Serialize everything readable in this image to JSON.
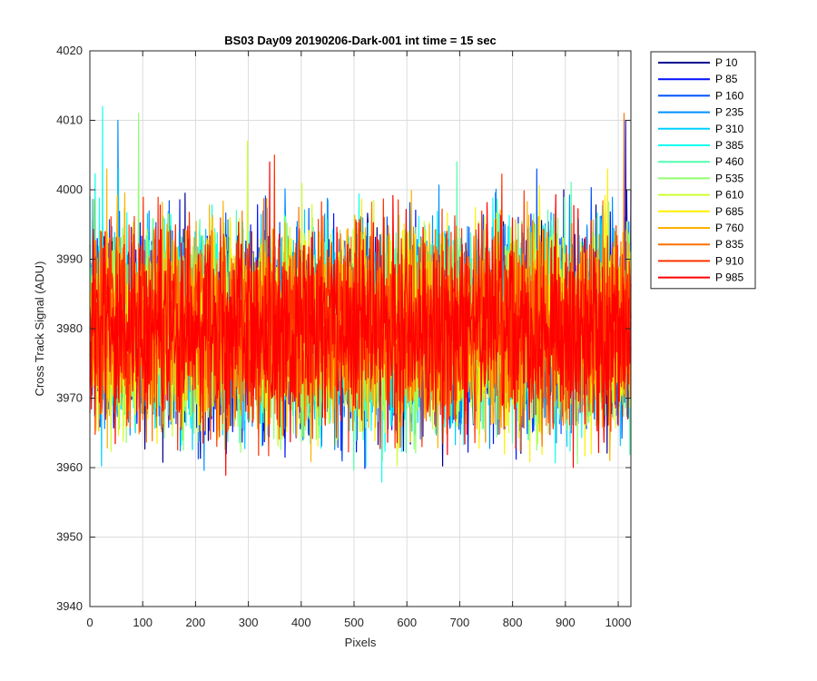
{
  "chart_data": {
    "type": "line",
    "title": "BS03 Day09 20190206-Dark-001 int time = 15 sec",
    "xlabel": "Pixels",
    "ylabel": "Cross Track Signal (ADU)",
    "xlim": [
      0,
      1024
    ],
    "ylim": [
      3940,
      4020
    ],
    "xticks": [
      0,
      100,
      200,
      300,
      400,
      500,
      600,
      700,
      800,
      900,
      1000
    ],
    "yticks": [
      3940,
      3950,
      3960,
      3970,
      3980,
      3990,
      4000,
      4010,
      4020
    ],
    "grid": true,
    "legend_position": "outside-top-right",
    "x_count": 1024,
    "noise_amplitude": 12,
    "series": [
      {
        "name": "P 10",
        "color": "#00008F",
        "mean": 3980,
        "max": 4000
      },
      {
        "name": "P 85",
        "color": "#0010FF",
        "mean": 3980,
        "max": 4010
      },
      {
        "name": "P 160",
        "color": "#0050FF",
        "mean": 3980,
        "max": 4003
      },
      {
        "name": "P 235",
        "color": "#0090FF",
        "mean": 3980,
        "max": 4010
      },
      {
        "name": "P 310",
        "color": "#00CFFF",
        "mean": 3980,
        "max": 4003
      },
      {
        "name": "P 385",
        "color": "#10FFEF",
        "mean": 3980,
        "max": 4012
      },
      {
        "name": "P 460",
        "color": "#50FFAF",
        "mean": 3980,
        "max": 4004
      },
      {
        "name": "P 535",
        "color": "#8FFF70",
        "mean": 3980,
        "max": 4011
      },
      {
        "name": "P 610",
        "color": "#CFFF30",
        "mean": 3980,
        "max": 4007
      },
      {
        "name": "P 685",
        "color": "#FFEF00",
        "mean": 3980,
        "max": 4003
      },
      {
        "name": "P 760",
        "color": "#FFB000",
        "mean": 3980,
        "max": 4003
      },
      {
        "name": "P 835",
        "color": "#FF7000",
        "mean": 3980,
        "max": 4011
      },
      {
        "name": "P 910",
        "color": "#FF3000",
        "mean": 3980,
        "max": 4005
      },
      {
        "name": "P 985",
        "color": "#FF0000",
        "mean": 3980,
        "max": 4004
      }
    ]
  }
}
